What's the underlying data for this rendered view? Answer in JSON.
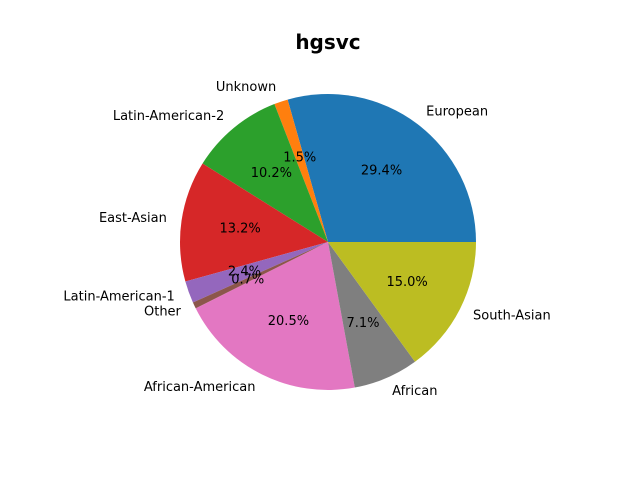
{
  "chart_data": {
    "type": "pie",
    "title": "hgsvc",
    "start_angle_deg": 0,
    "direction": "counterclockwise",
    "labels": [
      "European",
      "Unknown",
      "Latin-American-2",
      "East-Asian",
      "Latin-American-1",
      "Other",
      "African-American",
      "African",
      "South-Asian"
    ],
    "values": [
      29.4,
      1.5,
      10.2,
      13.2,
      2.4,
      0.7,
      20.5,
      7.1,
      15.0
    ],
    "percent_labels": [
      "29.4%",
      "1.5%",
      "10.2%",
      "13.2%",
      "2.4%",
      "0.7%",
      "20.5%",
      "7.1%",
      "15.0%"
    ],
    "colors": [
      "#1f77b4",
      "#ff7f0e",
      "#2ca02c",
      "#d62728",
      "#9467bd",
      "#8c564b",
      "#e377c2",
      "#7f7f7f",
      "#bcbd22"
    ]
  }
}
